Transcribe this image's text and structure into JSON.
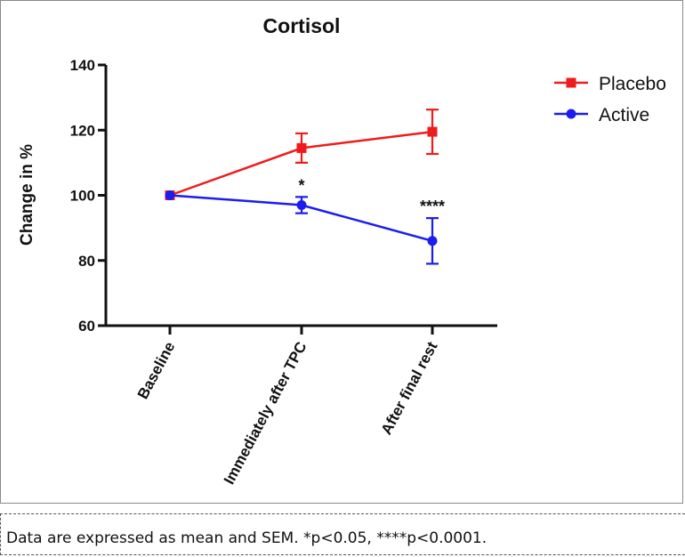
{
  "chart_data": {
    "type": "line",
    "title": "Cortisol",
    "ylabel": "Change in %",
    "xlabel": "",
    "categories": [
      "Baseline",
      "Immediately after TPC",
      "After final rest"
    ],
    "ylim": [
      60,
      140
    ],
    "yticks": [
      60,
      80,
      100,
      120,
      140
    ],
    "legend_position": "top-right",
    "series": [
      {
        "name": "Placebo",
        "color": "#ee1c1c",
        "marker": "square",
        "values": [
          100,
          114.5,
          119.5
        ],
        "errors": [
          0,
          4.5,
          6.8
        ]
      },
      {
        "name": "Active",
        "color": "#1c1cee",
        "marker": "circle",
        "values": [
          100,
          97,
          86
        ],
        "errors": [
          0,
          2.5,
          7.0
        ]
      }
    ],
    "annotations": [
      {
        "category": "Immediately after TPC",
        "text": "*"
      },
      {
        "category": "After final rest",
        "text": "****"
      }
    ]
  },
  "caption": "Data are expressed as mean and SEM. *p<0.05, ****p<0.0001."
}
